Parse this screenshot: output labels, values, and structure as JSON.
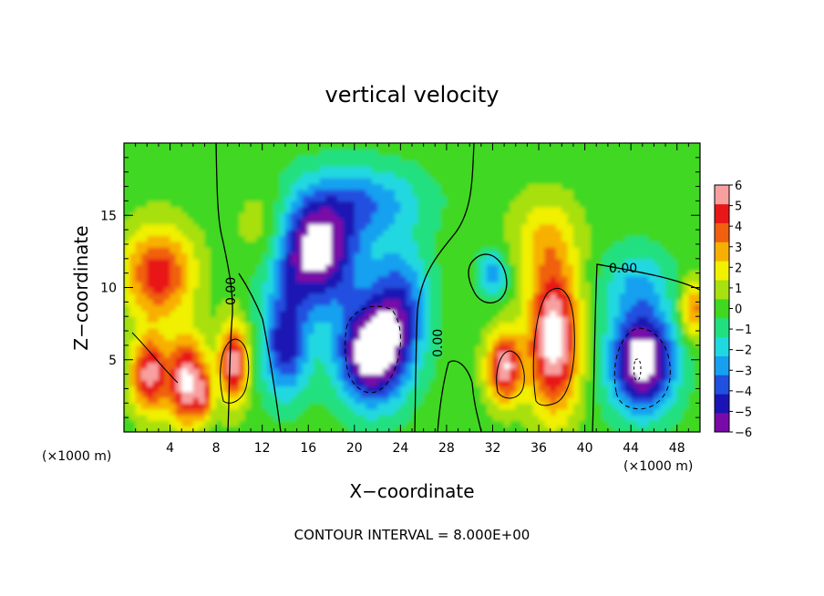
{
  "chart_data": {
    "type": "heatmap",
    "title": "vertical velocity",
    "xlabel": "X−coordinate",
    "ylabel": "Z−coordinate",
    "x_unit_label": "(×1000 m)",
    "z_unit_label": "(×1000 m)",
    "xlim": [
      0,
      50
    ],
    "ylim": [
      0,
      20
    ],
    "x_ticks": [
      4,
      8,
      12,
      16,
      20,
      24,
      28,
      32,
      36,
      40,
      44,
      48
    ],
    "x_tick_labels": [
      "4",
      "8",
      "12",
      "16",
      "20",
      "24",
      "28",
      "32",
      "36",
      "40",
      "44",
      "48"
    ],
    "y_ticks": [
      5,
      10,
      15
    ],
    "y_tick_labels": [
      "5",
      "10",
      "15"
    ],
    "colorbar": {
      "min": -6,
      "max": 6,
      "tick_labels": [
        "6",
        "5",
        "4",
        "3",
        "2",
        "1",
        "0",
        "−1",
        "−2",
        "−3",
        "−4",
        "−5",
        "−6"
      ],
      "colors": [
        "#7a0aa8",
        "#1a14b4",
        "#2050e0",
        "#18a0f0",
        "#20d8e0",
        "#20e080",
        "#40d820",
        "#a8e010",
        "#f0f000",
        "#f8b000",
        "#f06010",
        "#e81818",
        "#f8a0a0"
      ]
    },
    "contour_labels": [
      "0.00",
      "0.00",
      "0.00"
    ],
    "footnote": "CONTOUR INTERVAL = 8.000E+00",
    "grid": false,
    "features": [
      {
        "x": 3.0,
        "z": 11.0,
        "w": 1.2,
        "sx": 3.0,
        "sz": 3.2
      },
      {
        "x": 5.5,
        "z": 3.5,
        "w": 1.6,
        "sx": 1.6,
        "sz": 3.0
      },
      {
        "x": 2.2,
        "z": 4.0,
        "w": 1.4,
        "sx": 1.6,
        "sz": 2.6
      },
      {
        "x": 9.5,
        "z": 4.8,
        "w": 1.4,
        "sx": 1.3,
        "sz": 2.8
      },
      {
        "x": 7.0,
        "z": 2.5,
        "w": 0.7,
        "sx": 0.6,
        "sz": 1.6
      },
      {
        "x": 12.5,
        "z": 14.0,
        "w": 0.5,
        "sx": 2.5,
        "sz": 3.0
      },
      {
        "x": 16.5,
        "z": 12.5,
        "w": -1.7,
        "sx": 3.8,
        "sz": 3.8
      },
      {
        "x": 14.0,
        "z": 6.0,
        "w": -1.2,
        "sx": 2.0,
        "sz": 3.5
      },
      {
        "x": 21.5,
        "z": 5.5,
        "w": -1.8,
        "sx": 3.0,
        "sz": 3.5
      },
      {
        "x": 24.0,
        "z": 9.0,
        "w": -0.9,
        "sx": 2.5,
        "sz": 4.0
      },
      {
        "x": 21.0,
        "z": 16.0,
        "w": -0.7,
        "sx": 5.0,
        "sz": 2.5
      },
      {
        "x": 32.0,
        "z": 11.0,
        "w": -0.8,
        "sx": 1.2,
        "sz": 1.5
      },
      {
        "x": 33.0,
        "z": 4.5,
        "w": 1.5,
        "sx": 1.5,
        "sz": 2.4
      },
      {
        "x": 37.3,
        "z": 6.5,
        "w": 1.7,
        "sx": 2.2,
        "sz": 5.0
      },
      {
        "x": 36.5,
        "z": 13.5,
        "w": 0.5,
        "sx": 3.0,
        "sz": 3.0
      },
      {
        "x": 45.0,
        "z": 5.0,
        "w": -1.8,
        "sx": 2.8,
        "sz": 3.5
      },
      {
        "x": 44.5,
        "z": 10.5,
        "w": -0.5,
        "sx": 3.0,
        "sz": 2.5
      },
      {
        "x": 49.5,
        "z": 8.5,
        "w": 0.9,
        "sx": 1.3,
        "sz": 2.0
      }
    ]
  }
}
